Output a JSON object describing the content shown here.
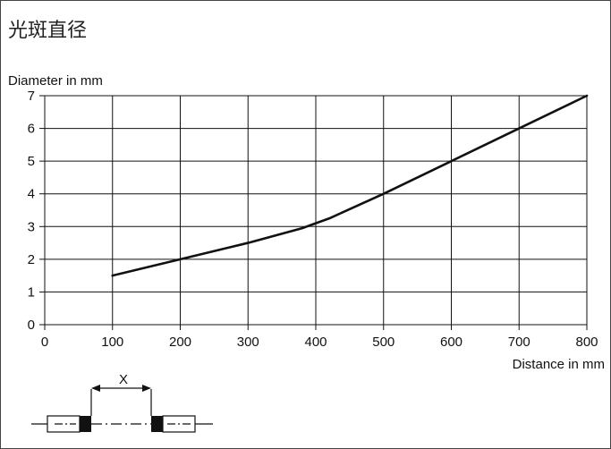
{
  "chart_data": {
    "type": "line",
    "title": "光斑直径",
    "xlabel": "Distance in mm",
    "ylabel": "Diameter in mm",
    "xlim": [
      0,
      800
    ],
    "ylim": [
      0,
      7
    ],
    "xticks": [
      0,
      100,
      200,
      300,
      400,
      500,
      600,
      700,
      800
    ],
    "yticks": [
      0,
      1,
      2,
      3,
      4,
      5,
      6,
      7
    ],
    "grid": true,
    "series": [
      {
        "color": "#111111",
        "x": [
          100,
          200,
          300,
          380,
          420,
          500,
          600,
          700,
          800
        ],
        "y": [
          1.5,
          2.0,
          2.5,
          2.95,
          3.25,
          4.0,
          5.0,
          6.0,
          7.0
        ]
      }
    ]
  },
  "diagram": {
    "dimension_label": "X"
  }
}
